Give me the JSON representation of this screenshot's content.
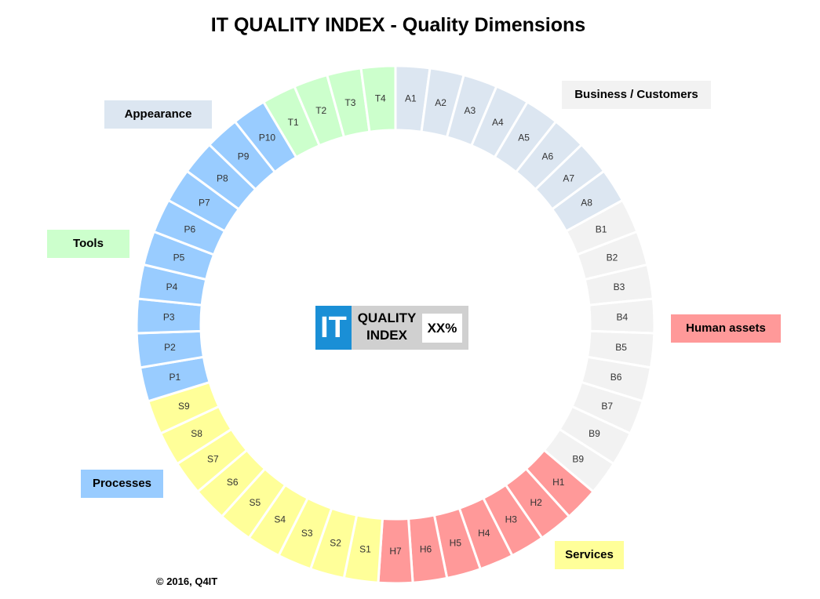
{
  "title": "IT QUALITY INDEX - Quality Dimensions",
  "categories": [
    {
      "id": "appearance",
      "label": "Appearance",
      "color": "#dce6f1",
      "segments": [
        "A1",
        "A2",
        "A3",
        "A4",
        "A5",
        "A6",
        "A7",
        "A8"
      ]
    },
    {
      "id": "business",
      "label": "Business / Customers",
      "color": "#f2f2f2",
      "segments": [
        "B1",
        "B2",
        "B3",
        "B4",
        "B5",
        "B6",
        "B7",
        "B9",
        "B9"
      ]
    },
    {
      "id": "human",
      "label": "Human assets",
      "color": "#ff9999",
      "segments": [
        "H1",
        "H2",
        "H3",
        "H4",
        "H5",
        "H6",
        "H7"
      ]
    },
    {
      "id": "services",
      "label": "Services",
      "color": "#ffff99",
      "segments": [
        "S1",
        "S2",
        "S3",
        "S4",
        "S5",
        "S6",
        "S7",
        "S8",
        "S9"
      ]
    },
    {
      "id": "processes",
      "label": "Processes",
      "color": "#99ccff",
      "segments": [
        "P1",
        "P2",
        "P3",
        "P4",
        "P5",
        "P6",
        "P7",
        "P8",
        "P9",
        "P10"
      ]
    },
    {
      "id": "tools",
      "label": "Tools",
      "color": "#ccffcc",
      "segments": [
        "T1",
        "T2",
        "T3",
        "T4"
      ]
    }
  ],
  "logo": {
    "it": "IT",
    "line1": "QUALITY",
    "line2": "INDEX",
    "value": "XX%"
  },
  "copyright": "© 2016, Q4IT"
}
